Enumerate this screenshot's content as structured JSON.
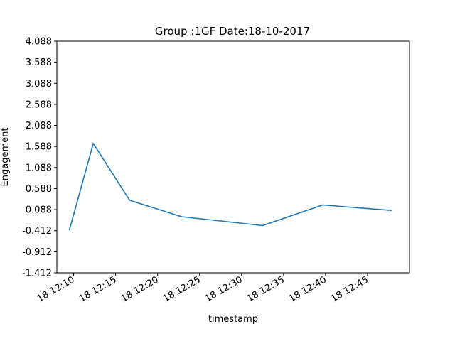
{
  "chart_data": {
    "type": "line",
    "title": "Group :1GF Date:18-10-2017",
    "xlabel": "timestamp",
    "ylabel": "Engagement",
    "ylim": [
      -1.412,
      4.088
    ],
    "yticks": [
      "-1.412",
      "-0.912",
      "-0.412",
      "0.088",
      "0.588",
      "1.088",
      "1.588",
      "2.088",
      "2.588",
      "3.088",
      "3.588",
      "4.088"
    ],
    "xlim": [
      "12:08:00",
      "12:50:00"
    ],
    "xticks": [
      {
        "time": "12:10",
        "label": "18 12:10"
      },
      {
        "time": "12:15",
        "label": "18 12:15"
      },
      {
        "time": "12:20",
        "label": "18 12:20"
      },
      {
        "time": "12:25",
        "label": "18 12:25"
      },
      {
        "time": "12:30",
        "label": "18 12:30"
      },
      {
        "time": "12:35",
        "label": "18 12:35"
      },
      {
        "time": "12:40",
        "label": "18 12:40"
      },
      {
        "time": "12:45",
        "label": "18 12:45"
      }
    ],
    "series": [
      {
        "color": "#1f77b4",
        "points": [
          {
            "x": "12:09:30",
            "y": -0.39
          },
          {
            "x": "12:12:20",
            "y": 1.66
          },
          {
            "x": "12:16:40",
            "y": 0.31
          },
          {
            "x": "12:22:50",
            "y": -0.08
          },
          {
            "x": "12:32:30",
            "y": -0.29
          },
          {
            "x": "12:39:40",
            "y": 0.2
          },
          {
            "x": "12:47:50",
            "y": 0.07
          }
        ]
      }
    ],
    "grid": false
  }
}
